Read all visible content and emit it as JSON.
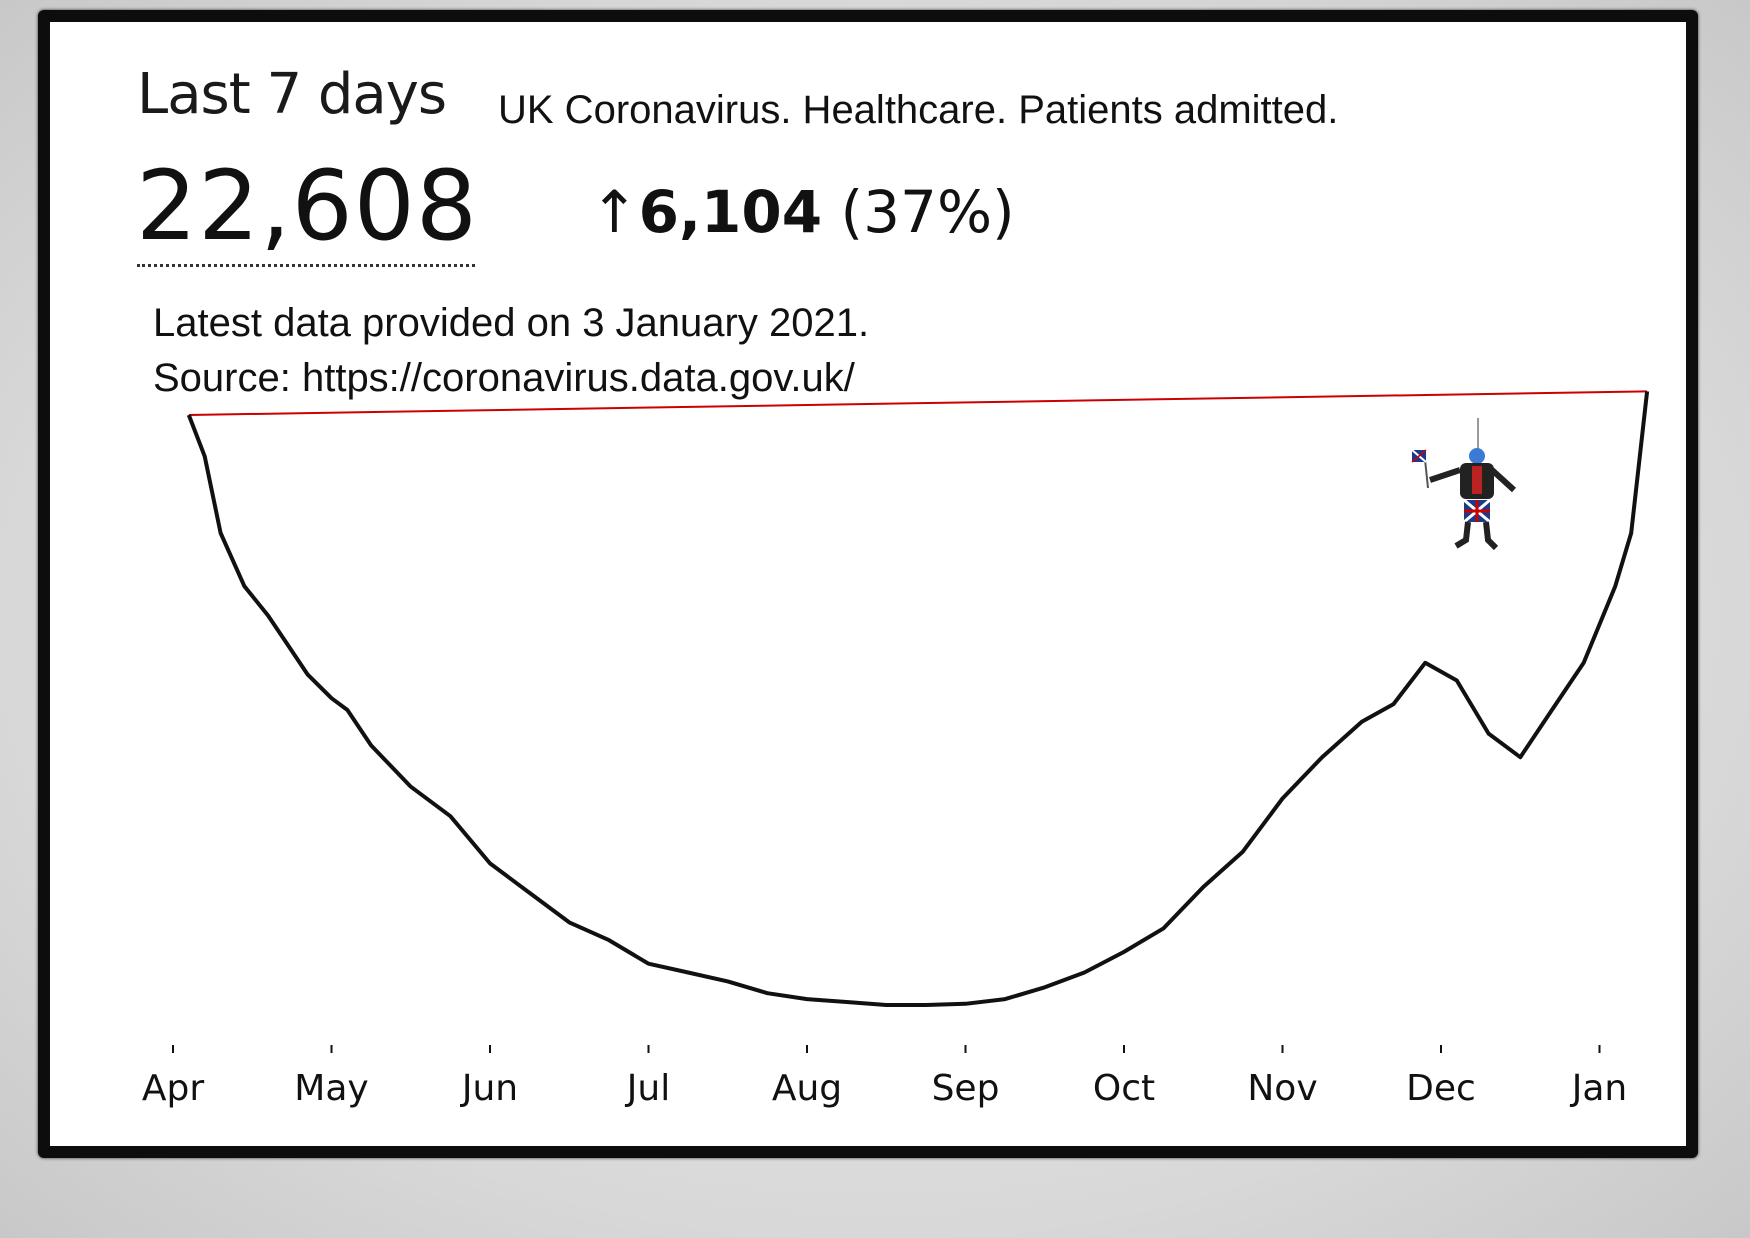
{
  "header": {
    "period_label": "Last 7 days",
    "title": "UK Coronavirus. Healthcare. Patients admitted.",
    "total": "22,608",
    "change_arrow": "↑",
    "change_value": "6,104",
    "change_percent": "(37%)"
  },
  "meta": {
    "latest": "Latest data provided on 3 January 2021.",
    "source": "Source: https://coronavirus.data.gov.uk/"
  },
  "chart_data": {
    "type": "line",
    "title": "UK Coronavirus. Healthcare. Patients admitted.",
    "xlabel": "",
    "ylabel": "",
    "grid": false,
    "categories": [
      "Apr",
      "May",
      "Jun",
      "Jul",
      "Aug",
      "Sep",
      "Oct",
      "Nov",
      "Dec",
      "Jan"
    ],
    "x": [
      0.1,
      0.2,
      0.3,
      0.45,
      0.6,
      0.75,
      0.85,
      1.0,
      1.1,
      1.25,
      1.5,
      1.75,
      2.0,
      2.25,
      2.5,
      2.75,
      3.0,
      3.25,
      3.5,
      3.75,
      4.0,
      4.25,
      4.5,
      4.75,
      5.0,
      5.25,
      5.5,
      5.75,
      6.0,
      6.25,
      6.5,
      6.75,
      7.0,
      7.25,
      7.5,
      7.7,
      7.9,
      8.1,
      8.3,
      8.5,
      8.7,
      8.9,
      9.1,
      9.2,
      9.3
    ],
    "y": [
      1.0,
      0.93,
      0.8,
      0.71,
      0.66,
      0.6,
      0.56,
      0.52,
      0.5,
      0.44,
      0.37,
      0.32,
      0.24,
      0.19,
      0.14,
      0.11,
      0.07,
      0.055,
      0.04,
      0.02,
      0.01,
      0.005,
      0.0,
      0.0,
      0.002,
      0.01,
      0.03,
      0.055,
      0.09,
      0.13,
      0.2,
      0.26,
      0.35,
      0.42,
      0.48,
      0.51,
      0.58,
      0.55,
      0.46,
      0.42,
      0.5,
      0.58,
      0.71,
      0.8,
      1.04
    ],
    "series": [
      {
        "values_ref": "y"
      }
    ],
    "reference_line": {
      "from_x": 0.1,
      "to_x": 9.3,
      "from_y": 1.0,
      "to_y": 1.04,
      "color": "#cc0000"
    },
    "line_color": "#111111"
  }
}
